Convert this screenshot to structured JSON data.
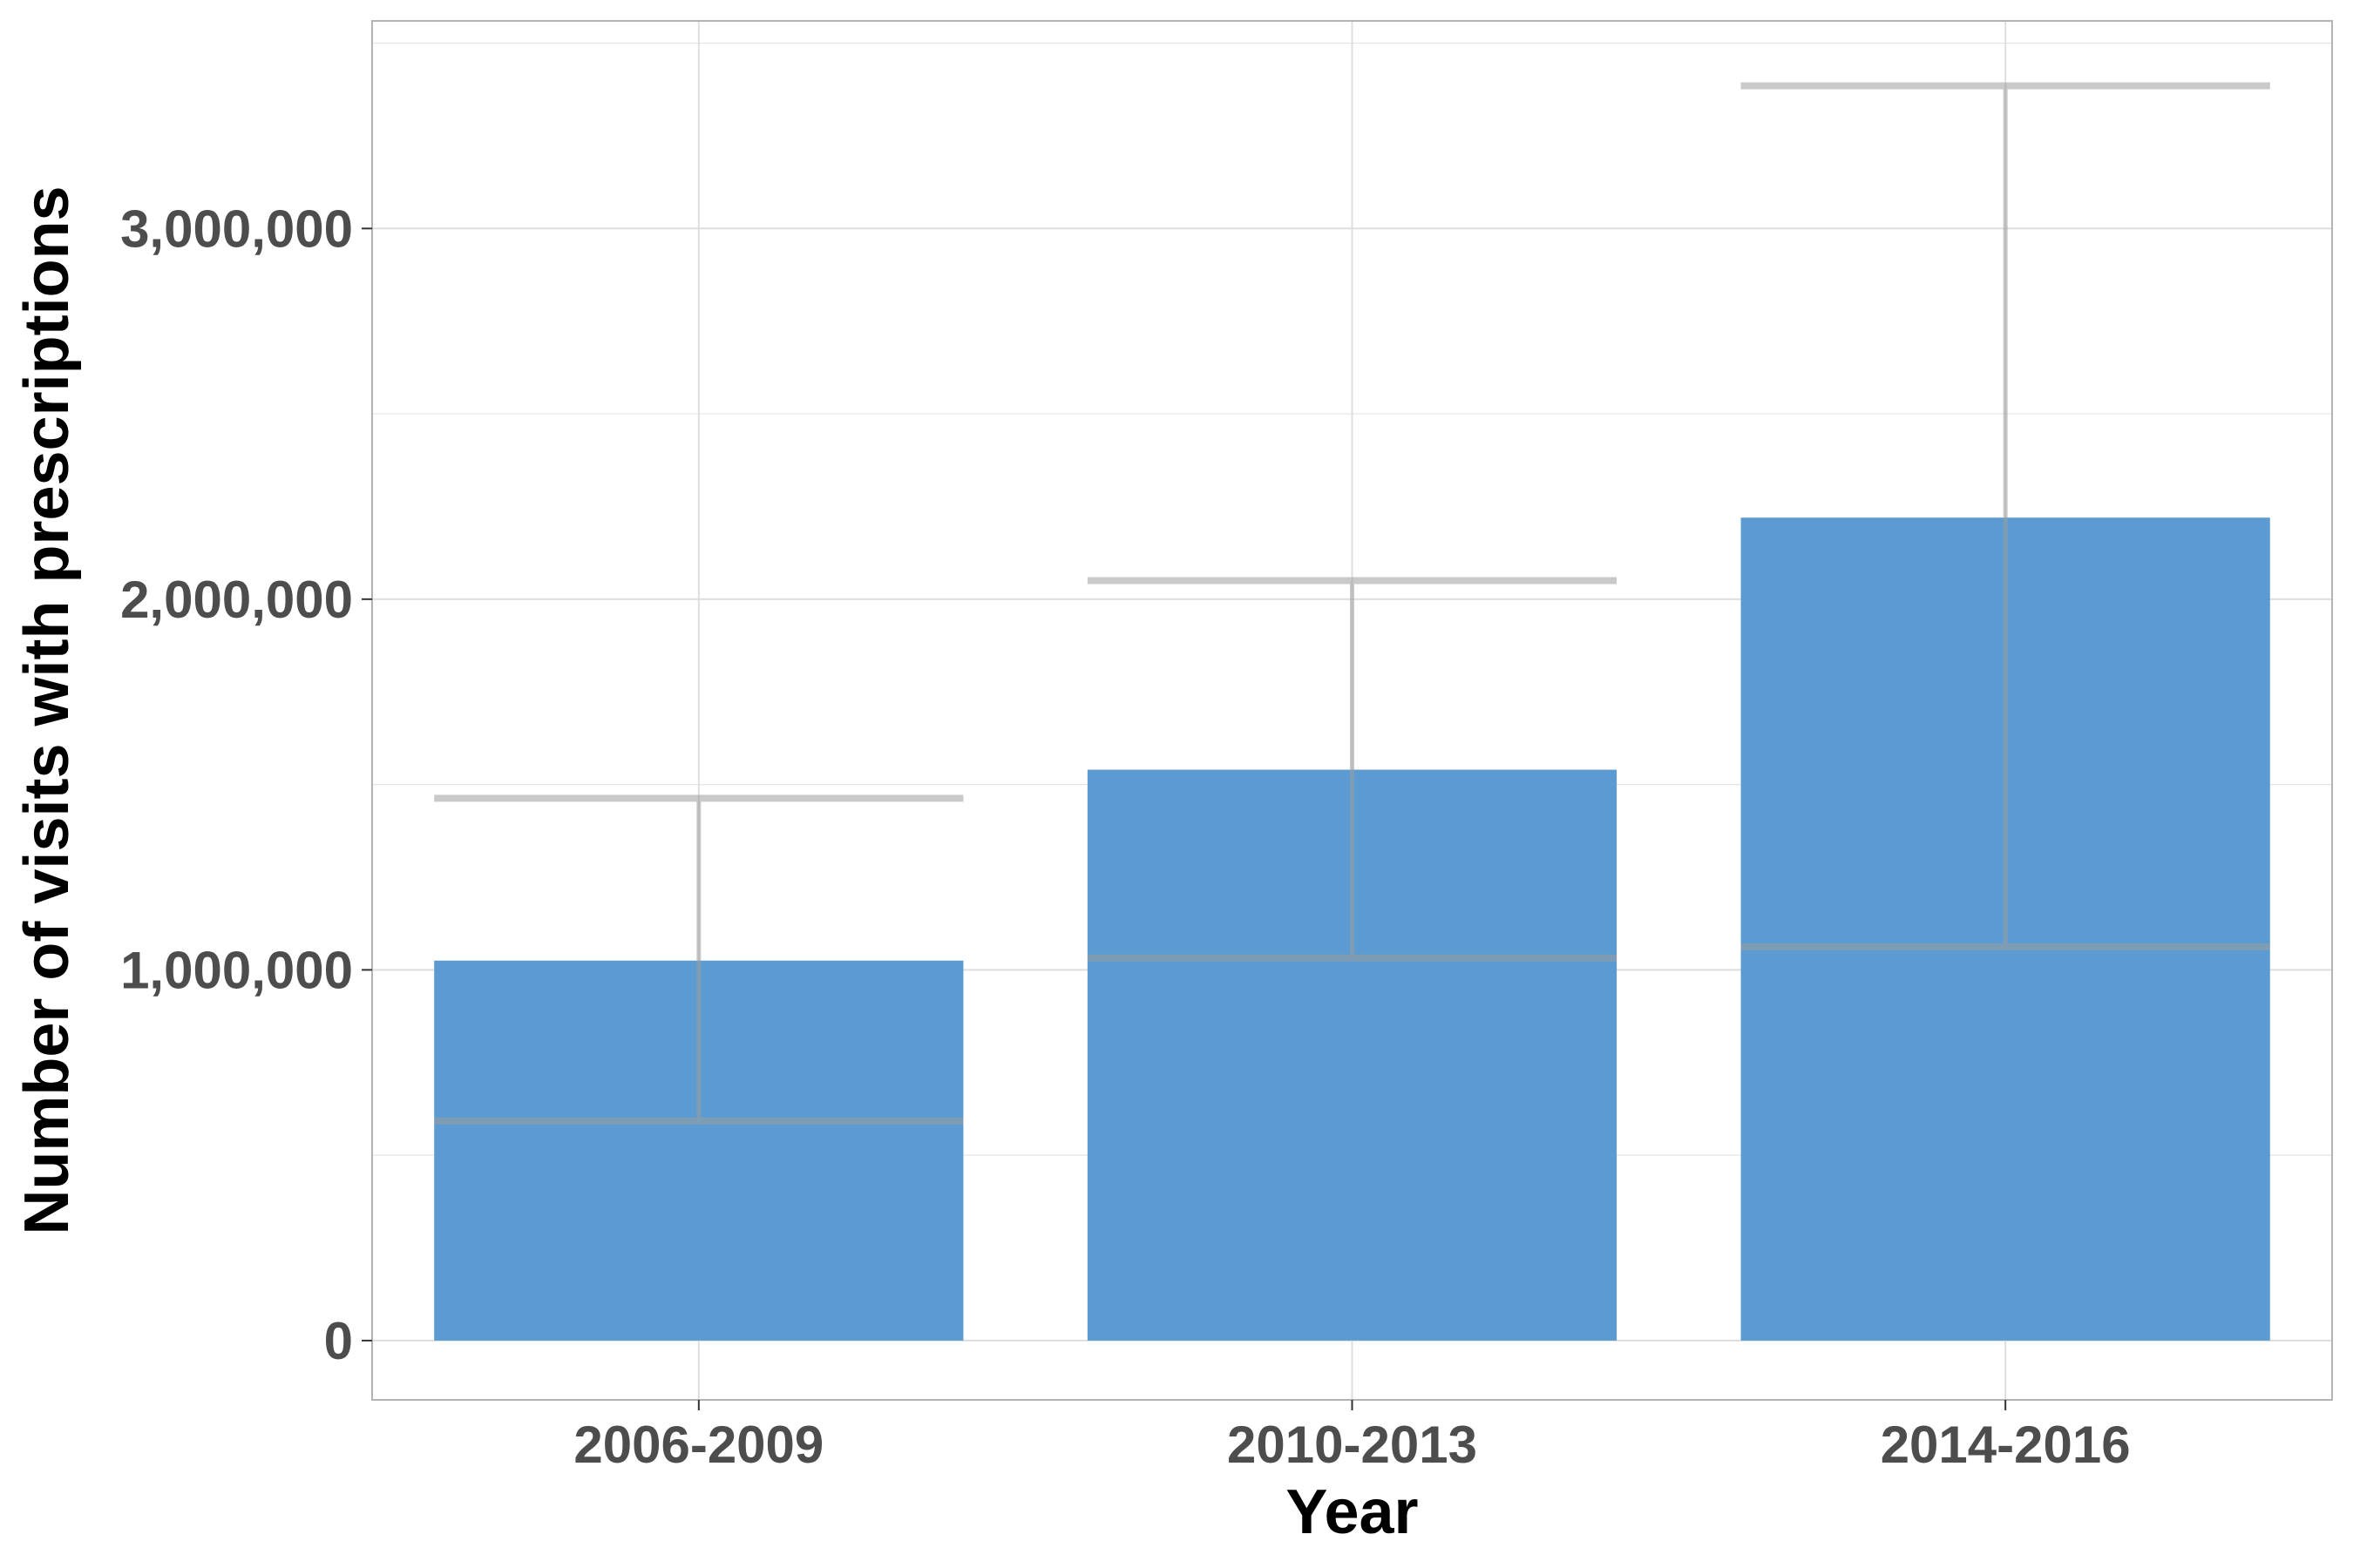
{
  "chart_data": {
    "type": "bar",
    "xlabel": "Year",
    "ylabel": "Number of visits with prescriptions",
    "categories": [
      "2006-2009",
      "2010-2013",
      "2014-2016"
    ],
    "values": [
      1025000,
      1540000,
      2220000
    ],
    "error_low": [
      592000,
      1032000,
      1062000
    ],
    "error_high": [
      1463000,
      2050000,
      3385000
    ],
    "ylim": [
      -160000,
      3560000
    ],
    "yticks": [
      0,
      1000000,
      2000000,
      3000000
    ],
    "ytick_labels": [
      "0",
      "1,000,000",
      "2,000,000",
      "3,000,000"
    ],
    "grid": true,
    "colors": {
      "bar": "#5b9bd2",
      "errorbar": "#9e9e9e",
      "grid": "#e5e5e5",
      "panel_border": "#b3b3b3"
    }
  }
}
